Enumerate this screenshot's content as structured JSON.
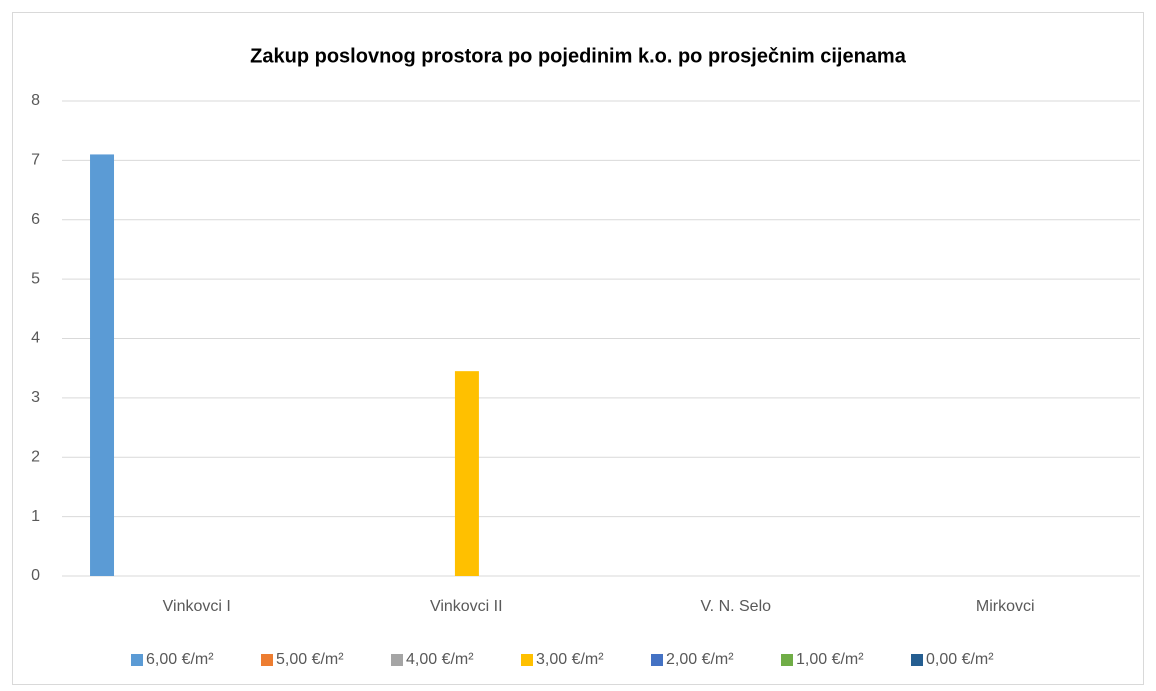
{
  "chart_data": {
    "type": "bar",
    "title": "Zakup poslovnog prostora po pojedinim k.o. po prosječnim cijenama",
    "categories": [
      "Vinkovci I",
      "Vinkovci II",
      "V. N. Selo",
      "Mirkovci"
    ],
    "series": [
      {
        "name": "6,00 €/m²",
        "color": "#5b9bd5",
        "values": [
          7.1,
          null,
          null,
          null
        ]
      },
      {
        "name": "5,00 €/m²",
        "color": "#ed7d31",
        "values": [
          null,
          null,
          null,
          null
        ]
      },
      {
        "name": "4,00 €/m²",
        "color": "#a5a5a5",
        "values": [
          null,
          null,
          null,
          null
        ]
      },
      {
        "name": "3,00 €/m²",
        "color": "#ffc000",
        "values": [
          null,
          3.45,
          null,
          null
        ]
      },
      {
        "name": "2,00 €/m²",
        "color": "#4472c4",
        "values": [
          null,
          null,
          null,
          null
        ]
      },
      {
        "name": "1,00 €/m²",
        "color": "#70ad47",
        "values": [
          null,
          null,
          null,
          null
        ]
      },
      {
        "name": "0,00 €/m²",
        "color": "#255e91",
        "values": [
          null,
          null,
          null,
          null
        ]
      }
    ],
    "ylim": [
      0,
      8
    ],
    "yticks": [
      0,
      1,
      2,
      3,
      4,
      5,
      6,
      7,
      8
    ],
    "grid": true,
    "legend": "bottom"
  }
}
